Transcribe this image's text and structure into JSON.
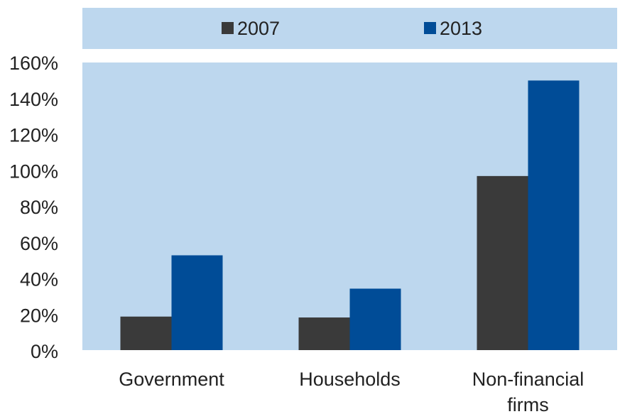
{
  "colors": {
    "panel_background": "#bdd7ee",
    "series_2007": "#3a3a3a",
    "series_2013": "#004c97",
    "axis_text": "#222222"
  },
  "chart_data": {
    "type": "bar",
    "title": "",
    "xlabel": "",
    "ylabel": "",
    "categories": [
      "Government",
      "Households",
      "Non-financial firms"
    ],
    "category_label_lines": [
      [
        "Government"
      ],
      [
        "Households"
      ],
      [
        "Non-financial",
        "firms"
      ]
    ],
    "series": [
      {
        "name": "2007",
        "values": [
          19,
          18.5,
          97
        ]
      },
      {
        "name": "2013",
        "values": [
          53,
          34.5,
          150
        ]
      }
    ],
    "ylim": [
      0,
      160
    ],
    "yticks": [
      0,
      20,
      40,
      60,
      80,
      100,
      120,
      140,
      160
    ],
    "ytick_labels": [
      "0%",
      "20%",
      "40%",
      "60%",
      "80%",
      "100%",
      "120%",
      "140%",
      "160%"
    ],
    "grid": false,
    "legend_position": "top"
  }
}
